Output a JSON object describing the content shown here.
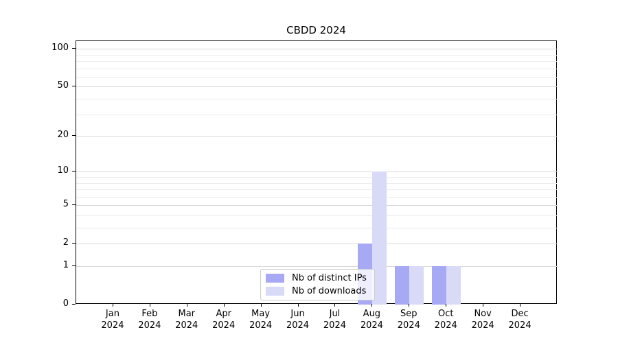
{
  "chart_data": {
    "type": "bar",
    "title": "CBDD 2024",
    "categories": [
      "Jan 2024",
      "Feb 2024",
      "Mar 2024",
      "Apr 2024",
      "May 2024",
      "Jun 2024",
      "Jul 2024",
      "Aug 2024",
      "Sep 2024",
      "Oct 2024",
      "Nov 2024",
      "Dec 2024"
    ],
    "series": [
      {
        "name": "Nb of distinct IPs",
        "color": "#a8a9f5",
        "values": [
          0,
          0,
          0,
          0,
          0,
          0,
          0,
          2,
          1,
          1,
          0,
          0
        ]
      },
      {
        "name": "Nb of downloads",
        "color": "#d8daf8",
        "values": [
          0,
          0,
          0,
          0,
          0,
          0,
          0,
          10,
          1,
          1,
          0,
          0
        ]
      }
    ],
    "xlabel": "",
    "ylabel": "",
    "yscale": "log1p",
    "ylim": [
      0,
      115
    ],
    "yticks_major": [
      0,
      1,
      2,
      5,
      10,
      20,
      50,
      100
    ],
    "yticks_minor": [
      3,
      4,
      6,
      7,
      8,
      9,
      30,
      40,
      60,
      70,
      80,
      90
    ],
    "grid": "horizontal",
    "legend_position": "lower center"
  },
  "colors": {
    "bar_distinct_ips": "#a8a9f5",
    "bar_downloads": "#d8daf8",
    "grid_major": "#d8d8d8",
    "grid_minor": "#ececec",
    "spine": "#000000",
    "legend_border": "#cccccc",
    "legend_background": "rgba(255,255,255,0.8)"
  }
}
